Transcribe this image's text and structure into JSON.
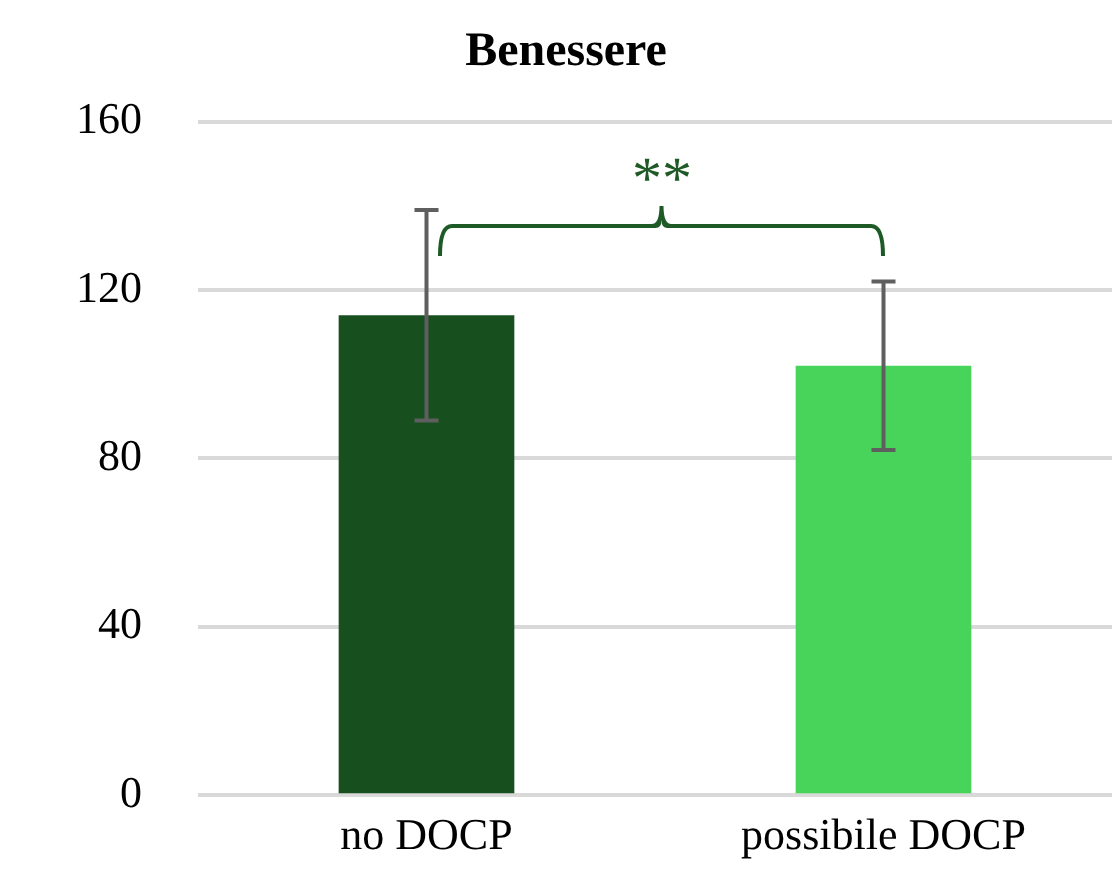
{
  "chart_data": {
    "type": "bar",
    "title": "Benessere",
    "categories": [
      "no DOCP",
      "possibile DOCP"
    ],
    "values": [
      114,
      102
    ],
    "colors": [
      "#174f1e",
      "#48d45a"
    ],
    "errors": [
      25,
      20
    ],
    "ylim": [
      0,
      160
    ],
    "yticks": [
      0,
      40,
      80,
      120,
      160
    ],
    "grid": "y",
    "annotations": [
      "**"
    ]
  }
}
